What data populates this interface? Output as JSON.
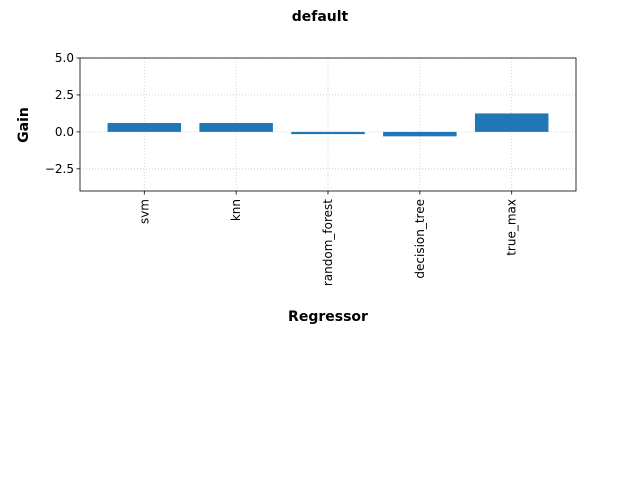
{
  "chart_data": {
    "type": "bar",
    "title": "default",
    "xlabel": "Regressor",
    "ylabel": "Gain",
    "categories": [
      "svm",
      "knn",
      "random_forest",
      "decision_tree",
      "true_max"
    ],
    "values": [
      0.6,
      0.6,
      -0.15,
      -0.3,
      1.25
    ],
    "ylim": [
      -4.0,
      5.0
    ],
    "yticks": [
      -2.5,
      0.0,
      2.5,
      5.0
    ],
    "ytick_labels": [
      "−2.5",
      "0.0",
      "2.5",
      "5.0"
    ],
    "grid": true,
    "bar_color": "#1f77b4"
  }
}
